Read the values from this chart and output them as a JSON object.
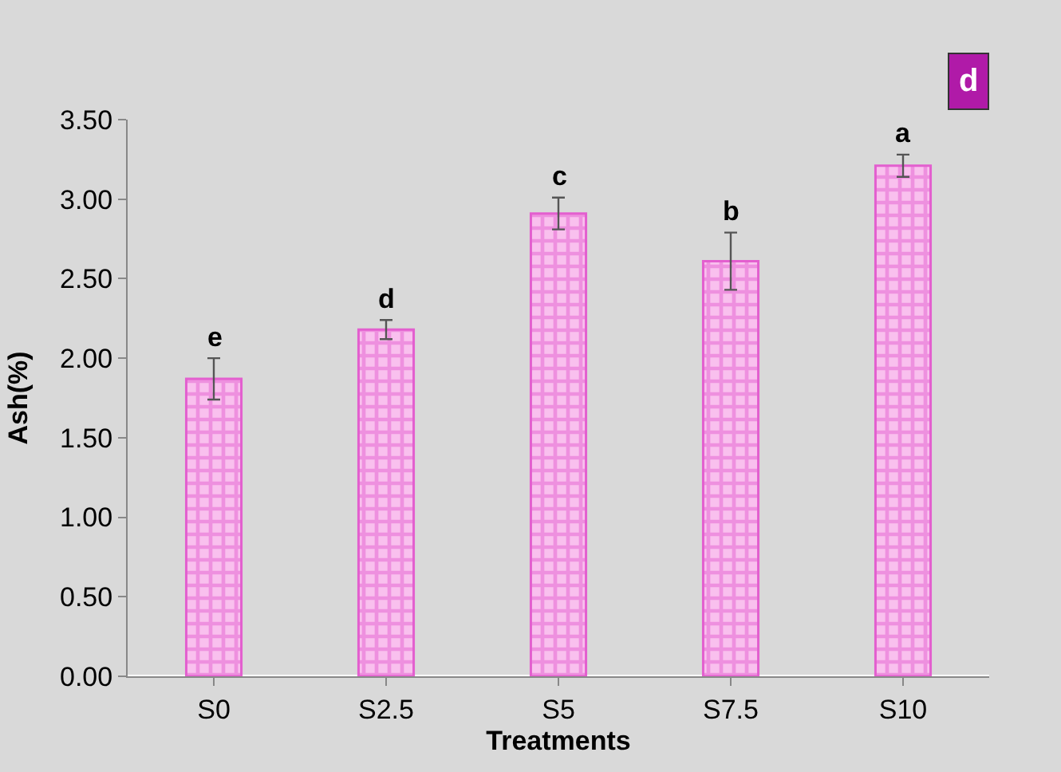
{
  "chart_data": {
    "type": "bar",
    "xlabel": "Treatments",
    "ylabel": "Ash(%)",
    "categories": [
      "S0",
      "S2.5",
      "S5",
      "S7.5",
      "S10"
    ],
    "values": [
      1.87,
      2.18,
      2.91,
      2.61,
      3.21
    ],
    "errors": [
      0.13,
      0.06,
      0.1,
      0.18,
      0.07
    ],
    "color": "#e35fcf",
    "ylim": [
      0,
      3.5
    ],
    "yticks": [
      {
        "value": 0,
        "label": "0.00"
      },
      {
        "value": 0.5,
        "label": "0.50"
      },
      {
        "value": 1,
        "label": "1.00"
      },
      {
        "value": 1.5,
        "label": "1.50"
      },
      {
        "value": 2,
        "label": "2.00"
      },
      {
        "value": 2.5,
        "label": "2.50"
      },
      {
        "value": 3,
        "label": "3.00"
      },
      {
        "value": 3.5,
        "label": "3.50"
      }
    ],
    "grid": false,
    "legend": false,
    "value_labels": [
      "e",
      "d",
      "c",
      "b",
      "a"
    ],
    "annotations": [
      "d"
    ]
  }
}
